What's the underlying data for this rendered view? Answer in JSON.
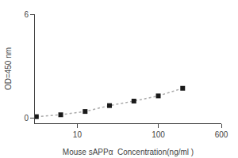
{
  "chart_data": {
    "type": "line",
    "x": [
      3.125,
      6.25,
      12.5,
      25,
      50,
      100,
      200
    ],
    "series": [
      {
        "color": "#1a1a1a",
        "marker": "square",
        "values": [
          0.08,
          0.19,
          0.38,
          0.72,
          0.98,
          1.28,
          1.72
        ]
      }
    ],
    "color": "#aaaaaa",
    "line_style": "dotted",
    "xlabel": "Mouse sAPPα  Concentration(ng/ml )",
    "ylabel": "OD=450 nm",
    "log": "x",
    "xlim": [
      3,
      600
    ],
    "xticks": [
      10,
      100,
      600
    ],
    "ylim": [
      -0.3,
      6.0
    ],
    "yticks": [
      0,
      6
    ],
    "grid": false
  }
}
